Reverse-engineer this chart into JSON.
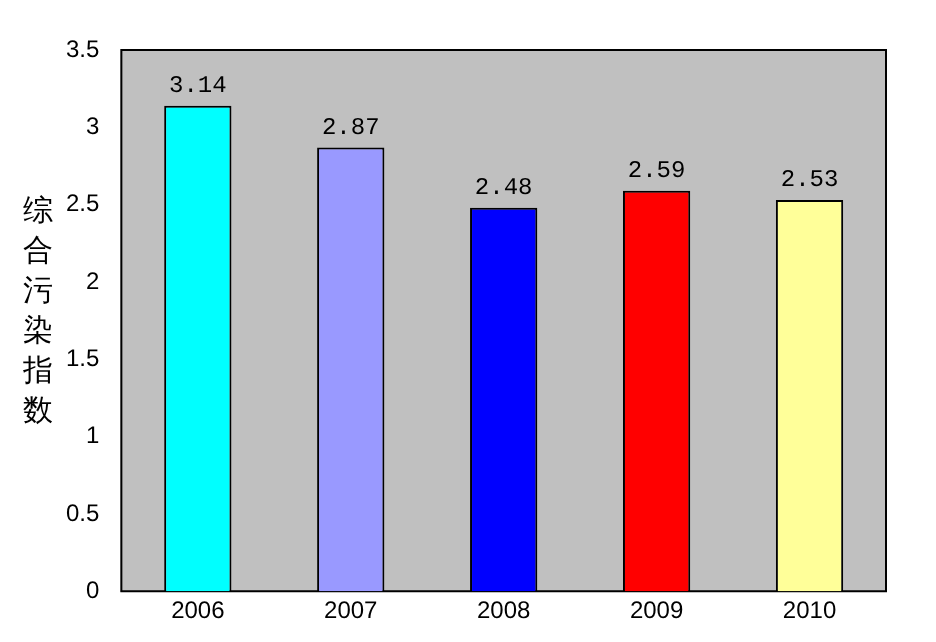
{
  "chart_data": {
    "type": "bar",
    "ylabel": "综合污染指数",
    "categories": [
      "2006",
      "2007",
      "2008",
      "2009",
      "2010"
    ],
    "values": [
      3.14,
      2.87,
      2.48,
      2.59,
      2.53
    ],
    "colors": [
      "#00ffff",
      "#9999ff",
      "#0000ff",
      "#ff0000",
      "#ffff99"
    ],
    "ylim": [
      0,
      3.5
    ],
    "yticks": [
      0,
      0.5,
      1,
      1.5,
      2,
      2.5,
      3,
      3.5
    ],
    "grid": false,
    "legend": false,
    "data_labels": true
  }
}
